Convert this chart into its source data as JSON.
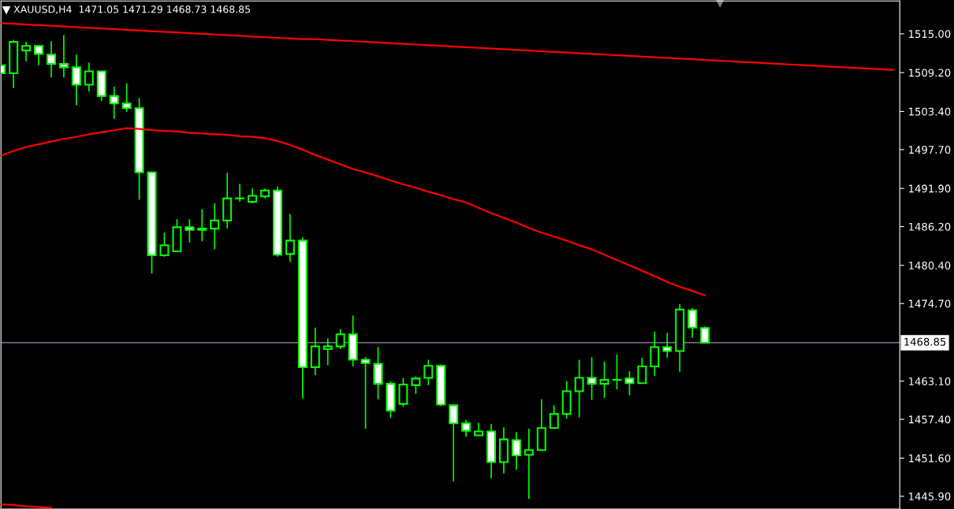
{
  "chart_data": {
    "type": "candlestick",
    "title": "XAUUSD,H4  1471.05 1471.29 1468.73 1468.85",
    "categories": [
      null,
      null,
      null,
      null,
      null,
      null,
      null,
      null,
      null,
      null,
      null,
      null,
      null,
      null,
      null,
      null,
      null,
      null,
      null,
      null,
      null,
      null,
      null,
      null,
      null,
      null,
      null,
      null,
      null,
      null,
      null,
      null,
      null,
      null,
      null,
      null,
      null,
      null,
      null,
      null,
      null,
      null,
      null,
      null,
      null,
      null,
      null,
      null,
      null,
      null,
      null,
      null,
      null,
      null,
      null,
      null,
      null,
      null,
      null,
      null,
      null,
      null,
      null,
      null,
      null,
      null,
      null,
      null,
      null,
      null,
      null,
      null
    ],
    "tick_labels": "y",
    "ylim": [
      1444.0,
      1519.9
    ],
    "yticks": [
      {
        "value": 1515.0,
        "label": "1515.00"
      },
      {
        "value": 1509.2,
        "label": "1509.20"
      },
      {
        "value": 1503.4,
        "label": "1503.40"
      },
      {
        "value": 1497.7,
        "label": "1497.70"
      },
      {
        "value": 1491.9,
        "label": "1491.90"
      },
      {
        "value": 1486.2,
        "label": "1486.20"
      },
      {
        "value": 1480.4,
        "label": "1480.40"
      },
      {
        "value": 1474.7,
        "label": "1474.70"
      },
      {
        "value": 1463.1,
        "label": "1463.10"
      },
      {
        "value": 1457.4,
        "label": "1457.40"
      },
      {
        "value": 1451.6,
        "label": "1451.60"
      },
      {
        "value": 1445.9,
        "label": "1445.90"
      }
    ],
    "grid": false,
    "legend": false,
    "ref_lines": [
      {
        "axis": "y",
        "value": 1468.85,
        "label": "1468.85",
        "color": "#8c96a8",
        "line_style": "solid"
      }
    ],
    "series": [
      {
        "type": "candlestick",
        "color": "#00ff00",
        "ohlc": [
          [
            1510.3,
            1510.3,
            1509.1,
            1509.1
          ],
          [
            1509.1,
            1514.1,
            1506.9,
            1513.8
          ],
          [
            1512.5,
            1513.8,
            1510.9,
            1513.2
          ],
          [
            1513.2,
            1513.2,
            1510.3,
            1512.0
          ],
          [
            1511.9,
            1513.9,
            1508.5,
            1510.5
          ],
          [
            1510.5,
            1514.8,
            1508.5,
            1510.0
          ],
          [
            1510.0,
            1511.9,
            1504.3,
            1507.4
          ],
          [
            1507.4,
            1510.7,
            1506.4,
            1509.4
          ],
          [
            1509.4,
            1509.4,
            1505.0,
            1505.7
          ],
          [
            1505.7,
            1507.1,
            1502.3,
            1504.6
          ],
          [
            1504.6,
            1507.6,
            1503.3,
            1503.9
          ],
          [
            1503.9,
            1505.4,
            1490.2,
            1494.3
          ],
          [
            1494.3,
            1494.3,
            1479.2,
            1481.9
          ],
          [
            1481.9,
            1485.3,
            1481.7,
            1483.4
          ],
          [
            1482.5,
            1487.3,
            1482.5,
            1486.1
          ],
          [
            1486.1,
            1487.3,
            1483.8,
            1485.7
          ],
          [
            1485.7,
            1488.8,
            1484.0,
            1485.9
          ],
          [
            1485.9,
            1489.7,
            1482.8,
            1487.1
          ],
          [
            1487.1,
            1494.2,
            1485.9,
            1490.4
          ],
          [
            1490.4,
            1492.6,
            1489.9,
            1490.4
          ],
          [
            1489.9,
            1491.9,
            1489.7,
            1490.8
          ],
          [
            1490.7,
            1491.9,
            1490.4,
            1491.6
          ],
          [
            1491.6,
            1492.2,
            1481.7,
            1482.0
          ],
          [
            1482.1,
            1488.1,
            1480.9,
            1484.1
          ],
          [
            1484.1,
            1484.6,
            1460.5,
            1465.2
          ],
          [
            1465.2,
            1471.1,
            1464.0,
            1468.3
          ],
          [
            1467.9,
            1469.5,
            1465.5,
            1468.3
          ],
          [
            1468.3,
            1470.9,
            1467.9,
            1470.1
          ],
          [
            1470.1,
            1472.9,
            1465.3,
            1466.3
          ],
          [
            1466.3,
            1466.7,
            1456.0,
            1465.8
          ],
          [
            1465.7,
            1468.2,
            1460.4,
            1462.7
          ],
          [
            1462.7,
            1463.1,
            1457.6,
            1458.7
          ],
          [
            1459.7,
            1463.6,
            1459.3,
            1462.6
          ],
          [
            1462.5,
            1463.8,
            1461.2,
            1463.5
          ],
          [
            1463.6,
            1466.3,
            1462.5,
            1465.4
          ],
          [
            1465.4,
            1465.6,
            1459.4,
            1459.6
          ],
          [
            1459.5,
            1459.5,
            1448.1,
            1456.8
          ],
          [
            1456.8,
            1457.3,
            1454.8,
            1455.7
          ],
          [
            1455.0,
            1456.9,
            1454.9,
            1455.6
          ],
          [
            1455.6,
            1456.7,
            1448.6,
            1451.0
          ],
          [
            1451.0,
            1456.2,
            1449.3,
            1454.4
          ],
          [
            1454.3,
            1455.5,
            1449.9,
            1452.0
          ],
          [
            1452.1,
            1456.0,
            1445.5,
            1452.8
          ],
          [
            1452.8,
            1460.4,
            1452.8,
            1456.1
          ],
          [
            1456.1,
            1459.5,
            1456.0,
            1458.2
          ],
          [
            1458.2,
            1463.1,
            1457.5,
            1461.6
          ],
          [
            1461.6,
            1466.3,
            1457.7,
            1463.6
          ],
          [
            1463.6,
            1466.7,
            1460.3,
            1462.7
          ],
          [
            1462.7,
            1466.0,
            1460.6,
            1463.3
          ],
          [
            1463.3,
            1467.1,
            1461.9,
            1463.3
          ],
          [
            1463.5,
            1464.6,
            1461.0,
            1462.8
          ],
          [
            1462.8,
            1466.6,
            1462.8,
            1465.3
          ],
          [
            1465.3,
            1470.5,
            1463.9,
            1468.2
          ],
          [
            1468.2,
            1470.3,
            1466.6,
            1467.6
          ],
          [
            1467.6,
            1474.6,
            1464.5,
            1473.8
          ],
          [
            1473.7,
            1474.0,
            1469.6,
            1471.1
          ],
          [
            1471.05,
            1471.29,
            1468.73,
            1468.85
          ],
          null,
          null,
          null,
          null,
          null,
          null,
          null,
          null,
          null,
          null,
          null,
          null,
          null,
          null,
          null
        ]
      },
      {
        "type": "line",
        "color": "#ff0000",
        "values": [
          1516.6,
          1516.5,
          1516.4,
          1516.3,
          1516.2,
          1516.1,
          1516.0,
          1515.9,
          1515.8,
          1515.7,
          1515.6,
          1515.5,
          1515.4,
          1515.3,
          1515.2,
          1515.1,
          1515.0,
          1514.9,
          1514.8,
          1514.7,
          1514.6,
          1514.5,
          1514.4,
          1514.3,
          1514.2,
          1514.2,
          1514.1,
          1514.0,
          1513.9,
          1513.8,
          1513.7,
          1513.6,
          1513.5,
          1513.4,
          1513.3,
          1513.2,
          1513.1,
          1513.0,
          1512.9,
          1512.8,
          1512.7,
          1512.6,
          1512.5,
          1512.4,
          1512.3,
          1512.2,
          1512.1,
          1512.0,
          1511.9,
          1511.8,
          1511.7,
          1511.6,
          1511.5,
          1511.4,
          1511.3,
          1511.2,
          1511.1,
          1511.0,
          1510.9,
          1510.8,
          1510.7,
          1510.6,
          1510.5,
          1510.4,
          1510.3,
          1510.2,
          1510.1,
          1510.0,
          1509.9,
          1509.8,
          1509.7,
          1509.6
        ]
      },
      {
        "type": "line",
        "color": "#ff0000",
        "values": [
          1496.8,
          1497.5,
          1498.1,
          1498.5,
          1498.9,
          1499.3,
          1499.6,
          1500.0,
          1500.3,
          1500.6,
          1500.9,
          1500.8,
          1500.6,
          1500.5,
          1500.4,
          1500.2,
          1500.1,
          1500.0,
          1499.9,
          1499.7,
          1499.6,
          1499.4,
          1499.0,
          1498.4,
          1497.7,
          1496.9,
          1496.2,
          1495.5,
          1494.8,
          1494.3,
          1493.7,
          1493.1,
          1492.5,
          1492.0,
          1491.4,
          1490.9,
          1490.3,
          1489.8,
          1489.0,
          1488.2,
          1487.5,
          1486.8,
          1486.0,
          1485.3,
          1484.7,
          1484.1,
          1483.4,
          1482.8,
          1482.0,
          1481.2,
          1480.4,
          1479.6,
          1478.8,
          1477.9,
          1477.2,
          1476.6,
          1475.9,
          null,
          null,
          null,
          null,
          null,
          null,
          null,
          null,
          null,
          null,
          null,
          null,
          null,
          null,
          null
        ]
      },
      {
        "type": "line",
        "color": "#ff0000",
        "values": [
          1444.7,
          1444.6,
          1444.4,
          1444.3,
          1444.2,
          null,
          null,
          null,
          null,
          null,
          null,
          null,
          null,
          null,
          null,
          null,
          null,
          null,
          null,
          null,
          null,
          null,
          null,
          null,
          null,
          null,
          null,
          null,
          null,
          null,
          null,
          null,
          null,
          null,
          null,
          null,
          null,
          null,
          null,
          null,
          null,
          null,
          null,
          null,
          null,
          null,
          null,
          null,
          null,
          null,
          null,
          null,
          null,
          null,
          null,
          null,
          null,
          null,
          null,
          null,
          null,
          null,
          null,
          null,
          null,
          null,
          null,
          null,
          null,
          null,
          null,
          null
        ]
      }
    ]
  }
}
